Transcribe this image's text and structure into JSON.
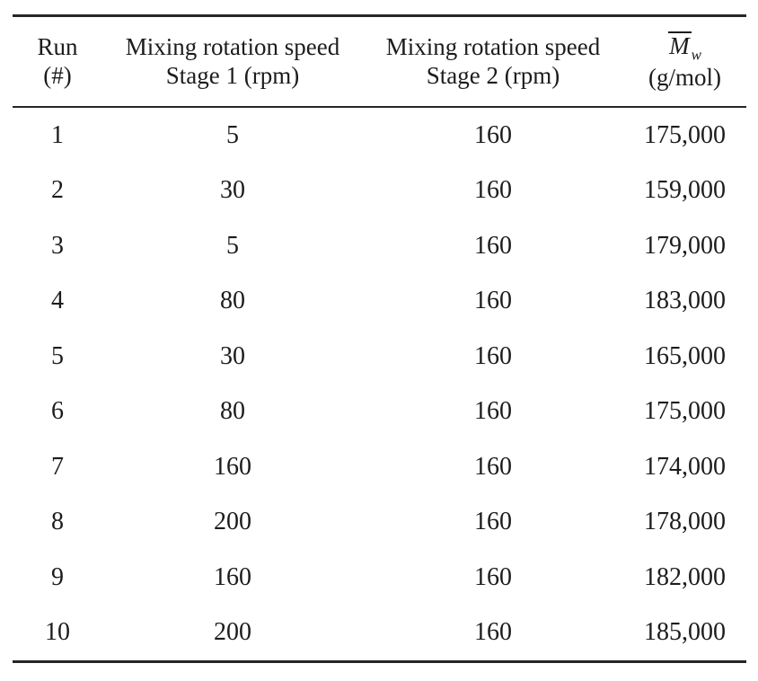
{
  "colors": {
    "background": "#ffffff",
    "text": "#1c1c1c",
    "rule": "#262626"
  },
  "table": {
    "columns": [
      {
        "line1": "Run",
        "line2": "(#)"
      },
      {
        "line1": "Mixing rotation speed",
        "line2": "Stage 1 (rpm)"
      },
      {
        "line1": "Mixing rotation speed",
        "line2": "Stage 2 (rpm)"
      },
      {
        "symbol": "M",
        "subscript": "w",
        "line2": "(g/mol)"
      }
    ],
    "rows": [
      {
        "run": "1",
        "stage1": "5",
        "stage2": "160",
        "mw": "175,000"
      },
      {
        "run": "2",
        "stage1": "30",
        "stage2": "160",
        "mw": "159,000"
      },
      {
        "run": "3",
        "stage1": "5",
        "stage2": "160",
        "mw": "179,000"
      },
      {
        "run": "4",
        "stage1": "80",
        "stage2": "160",
        "mw": "183,000"
      },
      {
        "run": "5",
        "stage1": "30",
        "stage2": "160",
        "mw": "165,000"
      },
      {
        "run": "6",
        "stage1": "80",
        "stage2": "160",
        "mw": "175,000"
      },
      {
        "run": "7",
        "stage1": "160",
        "stage2": "160",
        "mw": "174,000"
      },
      {
        "run": "8",
        "stage1": "200",
        "stage2": "160",
        "mw": "178,000"
      },
      {
        "run": "9",
        "stage1": "160",
        "stage2": "160",
        "mw": "182,000"
      },
      {
        "run": "10",
        "stage1": "200",
        "stage2": "160",
        "mw": "185,000"
      }
    ]
  }
}
